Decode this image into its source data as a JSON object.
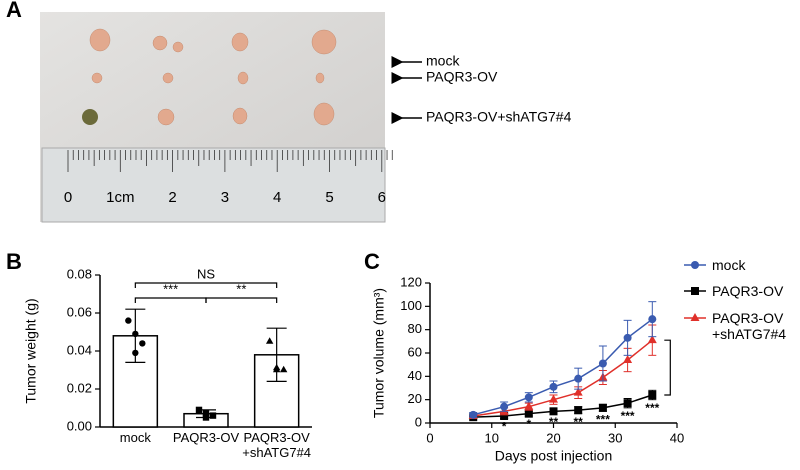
{
  "panels": {
    "a": "A",
    "b": "B",
    "c": "C"
  },
  "photo": {
    "labels": [
      "mock",
      "PAQR3-OV",
      "PAQR3-OV+shATG7#4"
    ],
    "ruler_labels": [
      "0",
      "1cm",
      "2",
      "3",
      "4",
      "5",
      "6"
    ]
  },
  "chart_data": [
    {
      "type": "bar",
      "ylabel": "Tumor weight (g)",
      "categories": [
        "mock",
        "PAQR3-OV",
        "PAQR3-OV\n+shATG7#4"
      ],
      "values": [
        0.048,
        0.007,
        0.038
      ],
      "errors": [
        0.014,
        0.002,
        0.014
      ],
      "points": [
        [
          0.056,
          0.049,
          0.044,
          0.039
        ],
        [
          0.009,
          0.007,
          0.006,
          0.005
        ],
        [
          0.045,
          0.031,
          0.03,
          0.03
        ]
      ],
      "point_shapes": [
        "circle",
        "square",
        "triangle"
      ],
      "color": "#ffffff",
      "ylim": [
        0,
        0.08
      ],
      "yticks": [
        {
          "value": 0,
          "label": "0.00"
        },
        0.02,
        0.04,
        0.06,
        0.08
      ],
      "comparisons": [
        {
          "groups": [
            "mock",
            "PAQR3-OV"
          ],
          "label": "***"
        },
        {
          "groups": [
            "PAQR3-OV",
            "PAQR3-OV\n+shATG7#4"
          ],
          "label": "**"
        },
        {
          "groups": [
            "mock",
            "PAQR3-OV\n+shATG7#4"
          ],
          "label": "NS"
        }
      ]
    },
    {
      "type": "line",
      "xlabel": "Days post injection",
      "ylabel": "Tumor volume (mm³)",
      "x": [
        7,
        12,
        16,
        20,
        24,
        28,
        32,
        36
      ],
      "series": [
        {
          "name": "mock",
          "color": "#3a5bb0",
          "marker": "circle",
          "values": [
            7,
            14,
            22,
            31,
            38,
            51,
            73,
            89
          ],
          "errors": [
            2,
            4,
            4,
            5,
            9,
            15,
            15,
            15
          ]
        },
        {
          "name": "PAQR3-OV",
          "color": "#000000",
          "marker": "square",
          "values": [
            5,
            6,
            8,
            10,
            11,
            13,
            17,
            24
          ],
          "errors": [
            1,
            2,
            2,
            2,
            3,
            3,
            4,
            4
          ]
        },
        {
          "name": "PAQR3-OV\n+shATG7#4",
          "color": "#e0302a",
          "marker": "triangle",
          "values": [
            6,
            10,
            14,
            20,
            26,
            39,
            54,
            71
          ],
          "errors": [
            1,
            3,
            3,
            4,
            5,
            6,
            10,
            13
          ]
        }
      ],
      "annotations": [
        {
          "x": 12,
          "label": "*"
        },
        {
          "x": 16,
          "label": "*"
        },
        {
          "x": 20,
          "label": "**"
        },
        {
          "x": 24,
          "label": "**"
        },
        {
          "x": 28,
          "label": "***"
        },
        {
          "x": 32,
          "label": "***"
        },
        {
          "x": 36,
          "label": "***"
        }
      ],
      "xlim": [
        0,
        40
      ],
      "xticks": [
        0,
        10,
        20,
        30,
        40
      ],
      "ylim": [
        0,
        120
      ],
      "yticks": [
        0,
        20,
        40,
        60,
        80,
        100,
        120
      ]
    }
  ]
}
